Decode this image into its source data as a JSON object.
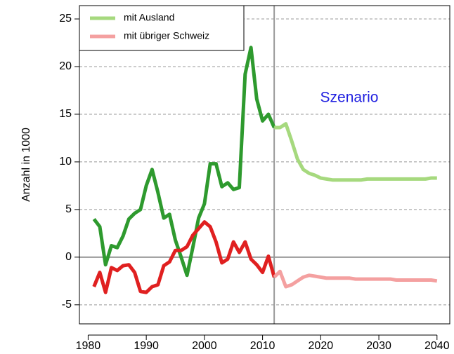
{
  "chart_data": {
    "type": "line",
    "ylabel": "Anzahl in 1000",
    "annotation": "Szenario",
    "x": [
      1981,
      1982,
      1983,
      1984,
      1985,
      1986,
      1987,
      1988,
      1989,
      1990,
      1991,
      1992,
      1993,
      1994,
      1995,
      1996,
      1997,
      1998,
      1999,
      2000,
      2001,
      2002,
      2003,
      2004,
      2005,
      2006,
      2007,
      2008,
      2009,
      2010,
      2011,
      2012,
      2013,
      2014,
      2015,
      2016,
      2017,
      2018,
      2019,
      2020,
      2021,
      2022,
      2023,
      2024,
      2025,
      2026,
      2027,
      2028,
      2029,
      2030,
      2031,
      2032,
      2033,
      2034,
      2035,
      2036,
      2037,
      2038,
      2039,
      2040
    ],
    "scenario_start": 2012,
    "series": [
      {
        "name": "mit Ausland",
        "color": "#a6d97e",
        "history_color": "#2e9a2e",
        "values": [
          4.0,
          3.2,
          -0.8,
          1.2,
          1.0,
          2.2,
          4.0,
          4.6,
          5.0,
          7.5,
          9.2,
          6.8,
          4.1,
          4.5,
          1.8,
          0.0,
          -1.9,
          1.0,
          4.1,
          5.6,
          9.8,
          9.8,
          7.4,
          7.8,
          7.1,
          7.3,
          19.2,
          22.0,
          16.6,
          14.3,
          15.0,
          13.6,
          13.6,
          14.0,
          12.2,
          10.3,
          9.2,
          8.8,
          8.6,
          8.3,
          8.2,
          8.1,
          8.1,
          8.1,
          8.1,
          8.1,
          8.1,
          8.2,
          8.2,
          8.2,
          8.2,
          8.2,
          8.2,
          8.2,
          8.2,
          8.2,
          8.2,
          8.2,
          8.3,
          8.3
        ]
      },
      {
        "name": "mit übriger Schweiz",
        "color": "#f4a0a0",
        "history_color": "#e02020",
        "values": [
          -3.1,
          -1.6,
          -3.7,
          -1.1,
          -1.4,
          -0.9,
          -0.8,
          -1.6,
          -3.6,
          -3.7,
          -3.1,
          -2.9,
          -0.9,
          -0.5,
          0.7,
          0.7,
          1.1,
          2.3,
          3.0,
          3.7,
          3.2,
          1.6,
          -0.6,
          -0.2,
          1.6,
          0.5,
          1.6,
          -0.2,
          -0.8,
          -1.6,
          0.1,
          -2.1,
          -1.5,
          -3.1,
          -2.9,
          -2.5,
          -2.1,
          -1.9,
          -2.0,
          -2.1,
          -2.2,
          -2.2,
          -2.2,
          -2.2,
          -2.2,
          -2.3,
          -2.3,
          -2.3,
          -2.3,
          -2.3,
          -2.3,
          -2.3,
          -2.4,
          -2.4,
          -2.4,
          -2.4,
          -2.4,
          -2.4,
          -2.4,
          -2.5
        ]
      }
    ],
    "xlim": [
      1978.5,
      2042.2
    ],
    "ylim": [
      -7,
      26.4
    ],
    "xticks": [
      1980,
      1990,
      2000,
      2010,
      2020,
      2030,
      2040
    ],
    "yticks": [
      -5,
      0,
      5,
      10,
      15,
      20,
      25
    ],
    "zero_line": 0,
    "grid": true,
    "legend": "top-left"
  }
}
